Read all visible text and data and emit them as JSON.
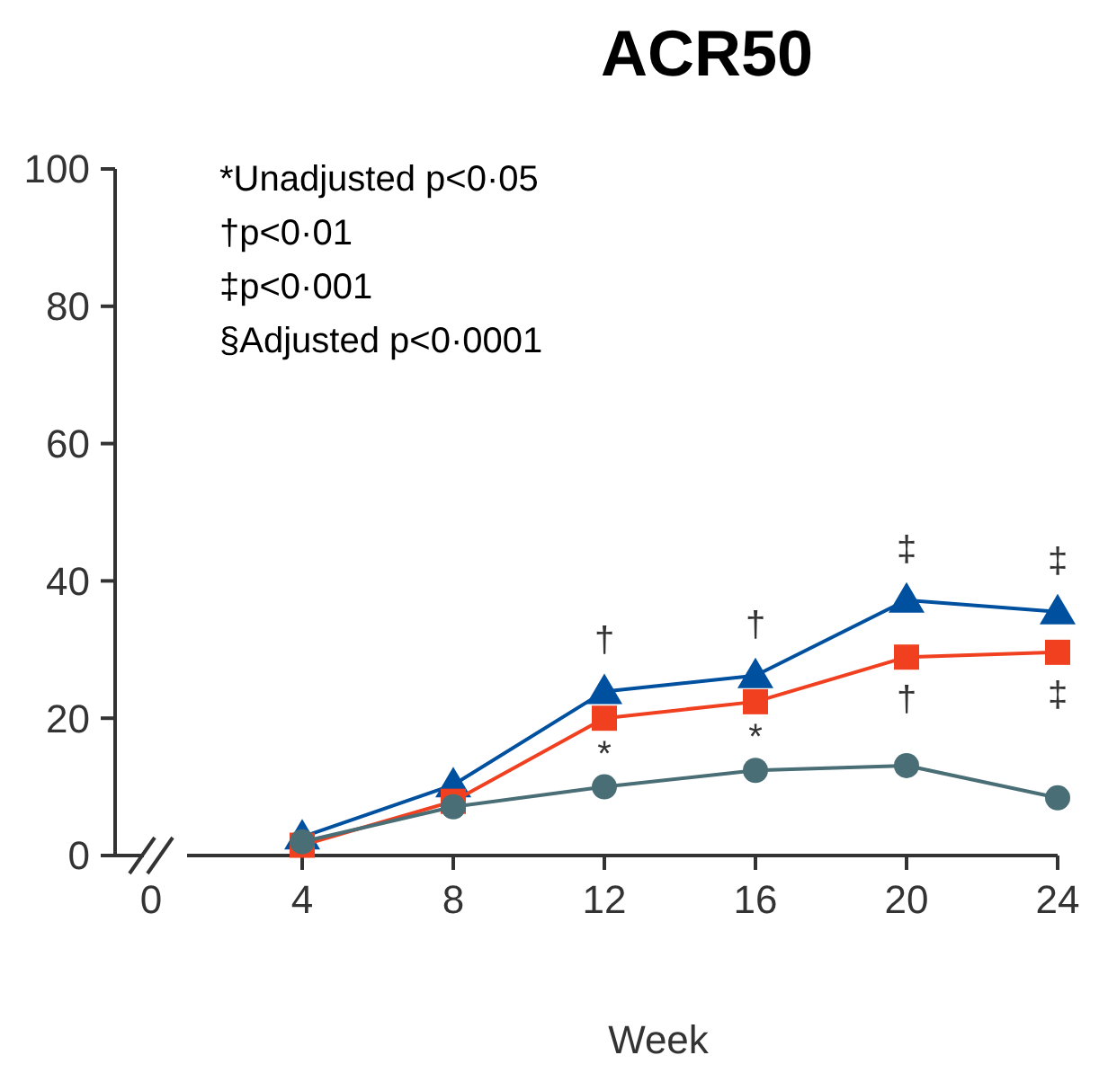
{
  "chart_data": {
    "type": "line",
    "title": "ACR50",
    "xlabel": "Week",
    "x": [
      4,
      8,
      12,
      16,
      20,
      24
    ],
    "series": [
      {
        "color": "#0050a0",
        "marker": "triangle",
        "values": [
          2.7,
          10.3,
          23.9,
          26.2,
          37.2,
          35.5
        ]
      },
      {
        "color": "#f04020",
        "marker": "square",
        "values": [
          1.5,
          7.9,
          20,
          22.4,
          28.9,
          29.6
        ]
      },
      {
        "color": "#4a6e76",
        "marker": "circle",
        "values": [
          2,
          7.1,
          10,
          12.4,
          13.1,
          8.4
        ]
      }
    ],
    "xlim": [
      0,
      24
    ],
    "xticks": [
      0,
      4,
      8,
      12,
      16,
      20,
      24
    ],
    "ylim": [
      0,
      100
    ],
    "yticks": [
      0,
      20,
      40,
      60,
      80,
      100
    ],
    "grid": false,
    "annotations": [
      "*Unadjusted p<0·05",
      "†p<0·01",
      "‡p<0·001",
      "§Adjusted p<0·0001",
      {
        "text": "†",
        "x": 12,
        "y": 23.9
      },
      {
        "text": "†",
        "x": 16,
        "y": 26.2
      },
      {
        "text": "‡",
        "x": 20,
        "y": 37.2
      },
      {
        "text": "‡",
        "x": 24,
        "y": 35.5
      },
      {
        "text": "*",
        "x": 12,
        "y": 10
      },
      {
        "text": "*",
        "x": 16,
        "y": 12.4
      },
      {
        "text": "†",
        "x": 20,
        "y": 28.9
      },
      {
        "text": "‡",
        "x": 24,
        "y": 29.6
      }
    ]
  }
}
